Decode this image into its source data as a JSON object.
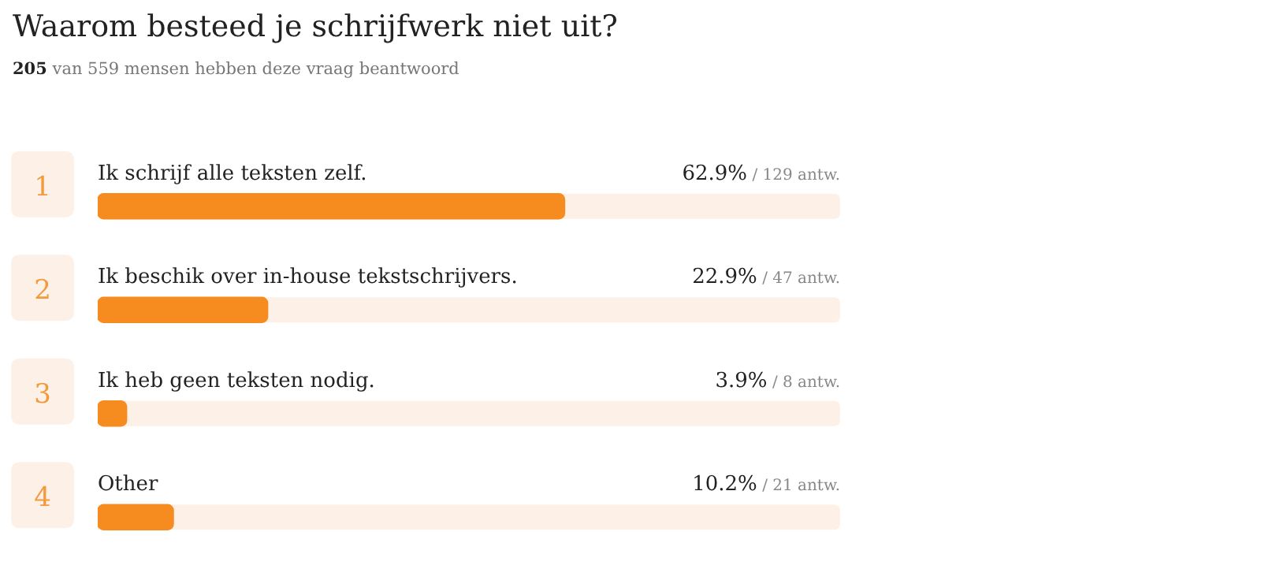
{
  "chart_data": {
    "type": "bar",
    "orientation": "horizontal",
    "title": "Waarom besteed je schrijfwerk niet uit?",
    "subtitle": "205 van 559 mensen hebben deze vraag beantwoord",
    "categories": [
      "Ik schrijf alle teksten zelf.",
      "Ik beschik over in-house tekstschrijvers.",
      "Ik heb geen teksten nodig.",
      "Other"
    ],
    "values": [
      62.9,
      22.9,
      3.9,
      10.2
    ],
    "value_labels": [
      "62.9% / 129 antw.",
      "22.9% / 47 antw.",
      "3.9% / 8 antw.",
      "10.2% / 21 antw."
    ],
    "annotations": [
      "1",
      "2",
      "3",
      "4"
    ],
    "color": "#f68b1f",
    "xlim": [
      0,
      100
    ]
  }
}
